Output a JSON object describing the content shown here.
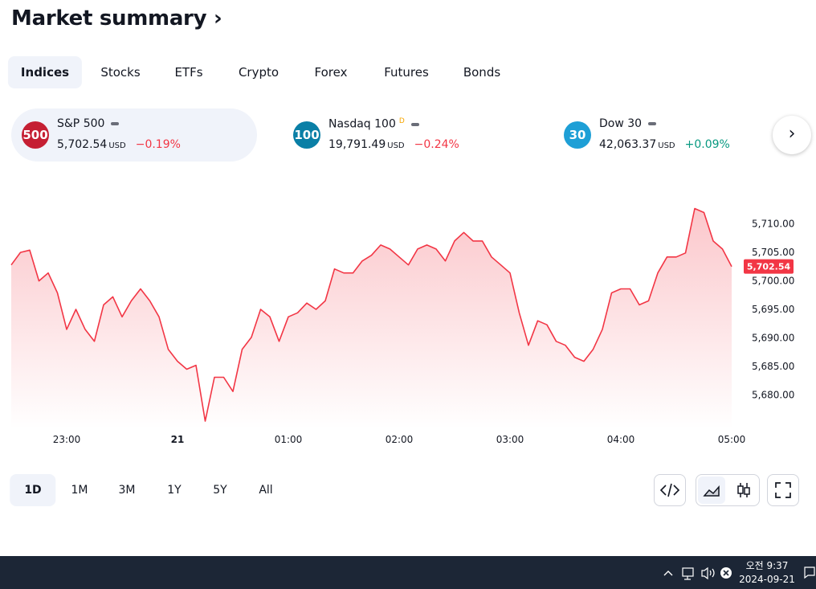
{
  "header": {
    "title": "Market summary"
  },
  "tabs": [
    "Indices",
    "Stocks",
    "ETFs",
    "Crypto",
    "Forex",
    "Futures",
    "Bonds"
  ],
  "tickers": [
    {
      "badge": "500",
      "name": "S&P 500",
      "price": "5,702.54",
      "unit": "USD",
      "change": "−0.19%"
    },
    {
      "badge": "100",
      "name": "Nasdaq 100",
      "flag": "D",
      "price": "19,791.49",
      "unit": "USD",
      "change": "−0.24%"
    },
    {
      "badge": "30",
      "name": "Dow 30",
      "price": "42,063.37",
      "unit": "USD",
      "change": "+0.09%"
    }
  ],
  "chart_data": {
    "type": "line",
    "color": "#f23645",
    "x": [
      "22:30",
      "22:35",
      "22:40",
      "22:45",
      "22:50",
      "22:55",
      "23:00",
      "23:05",
      "23:10",
      "23:15",
      "23:20",
      "23:25",
      "23:30",
      "23:35",
      "23:40",
      "23:45",
      "23:50",
      "23:55",
      "00:00",
      "00:05",
      "00:10",
      "00:15",
      "00:20",
      "00:25",
      "00:30",
      "00:35",
      "00:40",
      "00:45",
      "00:50",
      "00:55",
      "01:00",
      "01:05",
      "01:10",
      "01:15",
      "01:20",
      "01:25",
      "01:30",
      "01:35",
      "01:40",
      "01:45",
      "01:50",
      "01:55",
      "02:00",
      "02:05",
      "02:10",
      "02:15",
      "02:20",
      "02:25",
      "02:30",
      "02:35",
      "02:40",
      "02:45",
      "02:50",
      "02:55",
      "03:00",
      "03:05",
      "03:10",
      "03:15",
      "03:20",
      "03:25",
      "03:30",
      "03:35",
      "03:40",
      "03:45",
      "03:50",
      "03:55",
      "04:00",
      "04:05",
      "04:10",
      "04:15",
      "04:20",
      "04:25",
      "04:30",
      "04:35",
      "04:40",
      "04:45",
      "04:50",
      "04:55",
      "05:00"
    ],
    "values": [
      5702.8,
      5705,
      5705.4,
      5700,
      5701.4,
      5697.9,
      5691.5,
      5695,
      5691.5,
      5689.4,
      5695.8,
      5697.2,
      5693.7,
      5696.5,
      5698.6,
      5696.5,
      5693.7,
      5688,
      5685.9,
      5684.5,
      5685.2,
      5675.4,
      5683.1,
      5683.1,
      5680.6,
      5688,
      5690.1,
      5695,
      5693.7,
      5689.4,
      5693.7,
      5694.4,
      5696.1,
      5695,
      5696.5,
      5702.1,
      5701.4,
      5701.4,
      5703.5,
      5704.5,
      5706.3,
      5705.6,
      5704.2,
      5702.8,
      5705.6,
      5706.3,
      5705.6,
      5703.5,
      5707,
      5708.5,
      5707,
      5707,
      5704.2,
      5702.8,
      5701.4,
      5694.4,
      5688.7,
      5693,
      5692.3,
      5689.4,
      5688.7,
      5686.6,
      5685.9,
      5688,
      5691.5,
      5697.9,
      5698.6,
      5698.6,
      5695.8,
      5696.5,
      5701.4,
      5704.2,
      5704.2,
      5704.9,
      5712.7,
      5712,
      5707,
      5705.6,
      5702.5
    ],
    "xticks": [
      "23:00",
      {
        "value": "00:00",
        "label": "21"
      },
      "01:00",
      "02:00",
      "03:00",
      "04:00",
      "05:00"
    ],
    "ylim": [
      5674,
      5717
    ],
    "yticks": [
      {
        "value": 5680,
        "label": "5,680.00"
      },
      {
        "value": 5685,
        "label": "5,685.00"
      },
      {
        "value": 5690,
        "label": "5,690.00"
      },
      {
        "value": 5695,
        "label": "5,695.00"
      },
      {
        "value": 5700,
        "label": "5,700.00"
      },
      {
        "value": 5705,
        "label": "5,705.00"
      },
      {
        "value": 5710,
        "label": "5,710.00"
      }
    ],
    "current": {
      "value": 5702.54,
      "label": "5,702.54"
    }
  },
  "ranges": [
    "1D",
    "1M",
    "3M",
    "1Y",
    "5Y",
    "All"
  ],
  "taskbar": {
    "time": "오전 9:37",
    "date": "2024-09-21"
  }
}
